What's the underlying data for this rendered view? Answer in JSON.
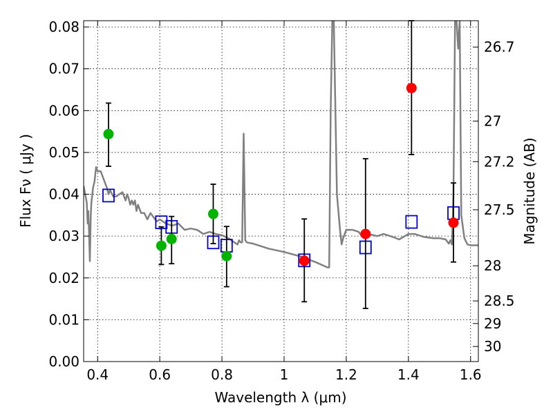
{
  "chart_data": {
    "type": "scatter",
    "xlabel": "Wavelength  λ (μm)",
    "ylabel": "Flux  Fν  ( μJy )",
    "y2label": "Magnitude (AB)",
    "xlim": [
      0.355,
      1.625
    ],
    "ylim": [
      0.0,
      0.0815
    ],
    "grid": true,
    "x_ticks": [
      0.4,
      0.6,
      0.8,
      1,
      1.2,
      1.4,
      1.6
    ],
    "x_tick_labels": [
      "0.4",
      "0.6",
      "0.8",
      "1",
      "1.2",
      "1.4",
      "1.6"
    ],
    "y_ticks": [
      0.0,
      0.01,
      0.02,
      0.03,
      0.04,
      0.05,
      0.06,
      0.07,
      0.08
    ],
    "y_tick_labels": [
      "0.00",
      "0.01",
      "0.02",
      "0.03",
      "0.04",
      "0.05",
      "0.06",
      "0.07",
      "0.08"
    ],
    "y2_ticks": [
      {
        "label": "26.7",
        "flux": 0.0752
      },
      {
        "label": "27",
        "flux": 0.0575
      },
      {
        "label": "27.2",
        "flux": 0.0478
      },
      {
        "label": "27.5",
        "flux": 0.0363
      },
      {
        "label": "28",
        "flux": 0.0229
      },
      {
        "label": "28.5",
        "flux": 0.0145
      },
      {
        "label": "29",
        "flux": 0.0091
      },
      {
        "label": "30",
        "flux": 0.0036
      }
    ],
    "colors": {
      "template": "#808080",
      "model": "#0000cc",
      "green": "#00b400",
      "red": "#ff0000",
      "errorbar": "#000000"
    },
    "series": [
      {
        "marker": "line",
        "x": [
          0.355,
          0.365,
          0.368,
          0.37,
          0.372,
          0.375,
          0.378,
          0.38,
          0.383,
          0.385,
          0.39,
          0.395,
          0.4,
          0.41,
          0.42,
          0.425,
          0.43,
          0.435,
          0.44,
          0.45,
          0.46,
          0.47,
          0.48,
          0.485,
          0.49,
          0.495,
          0.5,
          0.505,
          0.51,
          0.515,
          0.52,
          0.525,
          0.53,
          0.535,
          0.54,
          0.55,
          0.56,
          0.57,
          0.58,
          0.59,
          0.6,
          0.62,
          0.64,
          0.66,
          0.68,
          0.7,
          0.72,
          0.74,
          0.76,
          0.78,
          0.8,
          0.82,
          0.84,
          0.85,
          0.855,
          0.86,
          0.865,
          0.87,
          0.875,
          0.88,
          0.9,
          0.95,
          1.0,
          1.05,
          1.1,
          1.14,
          1.145,
          1.15,
          1.155,
          1.16,
          1.17,
          1.18,
          1.185,
          1.19,
          1.2,
          1.22,
          1.24,
          1.25,
          1.27,
          1.3,
          1.32,
          1.35,
          1.37,
          1.4,
          1.42,
          1.45,
          1.48,
          1.5,
          1.52,
          1.53,
          1.535,
          1.54,
          1.545,
          1.55,
          1.555,
          1.56,
          1.565,
          1.57,
          1.58,
          1.59,
          1.6,
          1.625
        ],
        "y": [
          0.042,
          0.038,
          0.033,
          0.036,
          0.032,
          0.024,
          0.035,
          0.038,
          0.04,
          0.0415,
          0.043,
          0.0465,
          0.0455,
          0.0455,
          0.0435,
          0.0425,
          0.0415,
          0.04,
          0.041,
          0.0395,
          0.0395,
          0.04,
          0.0405,
          0.0395,
          0.0385,
          0.04,
          0.039,
          0.0375,
          0.0385,
          0.0375,
          0.0385,
          0.036,
          0.0375,
          0.0365,
          0.0355,
          0.0355,
          0.034,
          0.0355,
          0.0345,
          0.0335,
          0.034,
          0.033,
          0.0325,
          0.033,
          0.0315,
          0.0318,
          0.0315,
          0.0305,
          0.031,
          0.0305,
          0.0302,
          0.0295,
          0.0285,
          0.028,
          0.029,
          0.0285,
          0.0285,
          0.0545,
          0.029,
          0.0285,
          0.0282,
          0.027,
          0.0262,
          0.0252,
          0.0238,
          0.0225,
          0.0225,
          0.06,
          0.0815,
          0.0815,
          0.04,
          0.0315,
          0.028,
          0.0295,
          0.0315,
          0.0315,
          0.031,
          0.03,
          0.0305,
          0.03,
          0.0305,
          0.0298,
          0.0292,
          0.0305,
          0.0305,
          0.0298,
          0.0295,
          0.0295,
          0.0292,
          0.0282,
          0.029,
          0.028,
          0.04,
          0.0815,
          0.0815,
          0.0748,
          0.0815,
          0.035,
          0.0295,
          0.028,
          0.0278,
          0.0278
        ]
      },
      {
        "marker": "open-square",
        "x": [
          0.435,
          0.605,
          0.638,
          0.772,
          0.815,
          1.065,
          1.262,
          1.41,
          1.545
        ],
        "y": [
          0.0397,
          0.0333,
          0.0322,
          0.0285,
          0.0277,
          0.0242,
          0.0273,
          0.0334,
          0.0355
        ]
      },
      {
        "marker": "filled-circle",
        "x": [
          0.435,
          0.605,
          0.638,
          0.772,
          0.815
        ],
        "y": [
          0.0544,
          0.0277,
          0.0293,
          0.0353,
          0.0252
        ],
        "yerr_low": [
          0.0467,
          0.0232,
          0.0234,
          0.0282,
          0.0179
        ],
        "yerr_high": [
          0.0618,
          0.0322,
          0.0347,
          0.0424,
          0.0323
        ]
      },
      {
        "marker": "filled-circle",
        "x": [
          1.065,
          1.262,
          1.41,
          1.545
        ],
        "y": [
          0.0241,
          0.0305,
          0.0654,
          0.0332
        ],
        "yerr_low": [
          0.0143,
          0.0127,
          0.0495,
          0.0238
        ],
        "yerr_high": [
          0.0341,
          0.0485,
          0.0815,
          0.0427
        ]
      }
    ]
  }
}
